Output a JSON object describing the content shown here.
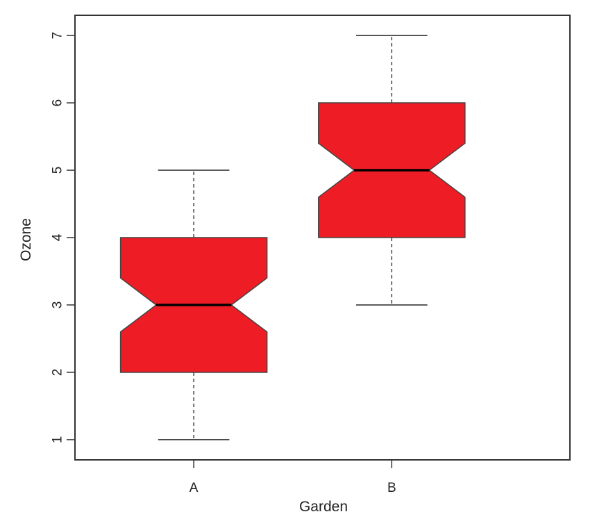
{
  "chart_data": {
    "type": "box",
    "notched": true,
    "xlabel": "Garden",
    "ylabel": "Ozone",
    "categories": [
      "A",
      "B"
    ],
    "ylim": [
      0.7,
      7.3
    ],
    "yticks": [
      1,
      2,
      3,
      4,
      5,
      6,
      7
    ],
    "boxes": [
      {
        "name": "A",
        "min": 1,
        "q1": 2,
        "median": 3,
        "q3": 4,
        "max": 5,
        "notch_low": 2.6,
        "notch_high": 3.4
      },
      {
        "name": "B",
        "min": 3,
        "q1": 4,
        "median": 5,
        "q3": 6,
        "max": 7,
        "notch_low": 4.6,
        "notch_high": 5.4
      }
    ],
    "colors": {
      "fill": "#ee1c25",
      "stroke": "#444444",
      "median": "#000000"
    },
    "grid": false,
    "legend": "none"
  }
}
